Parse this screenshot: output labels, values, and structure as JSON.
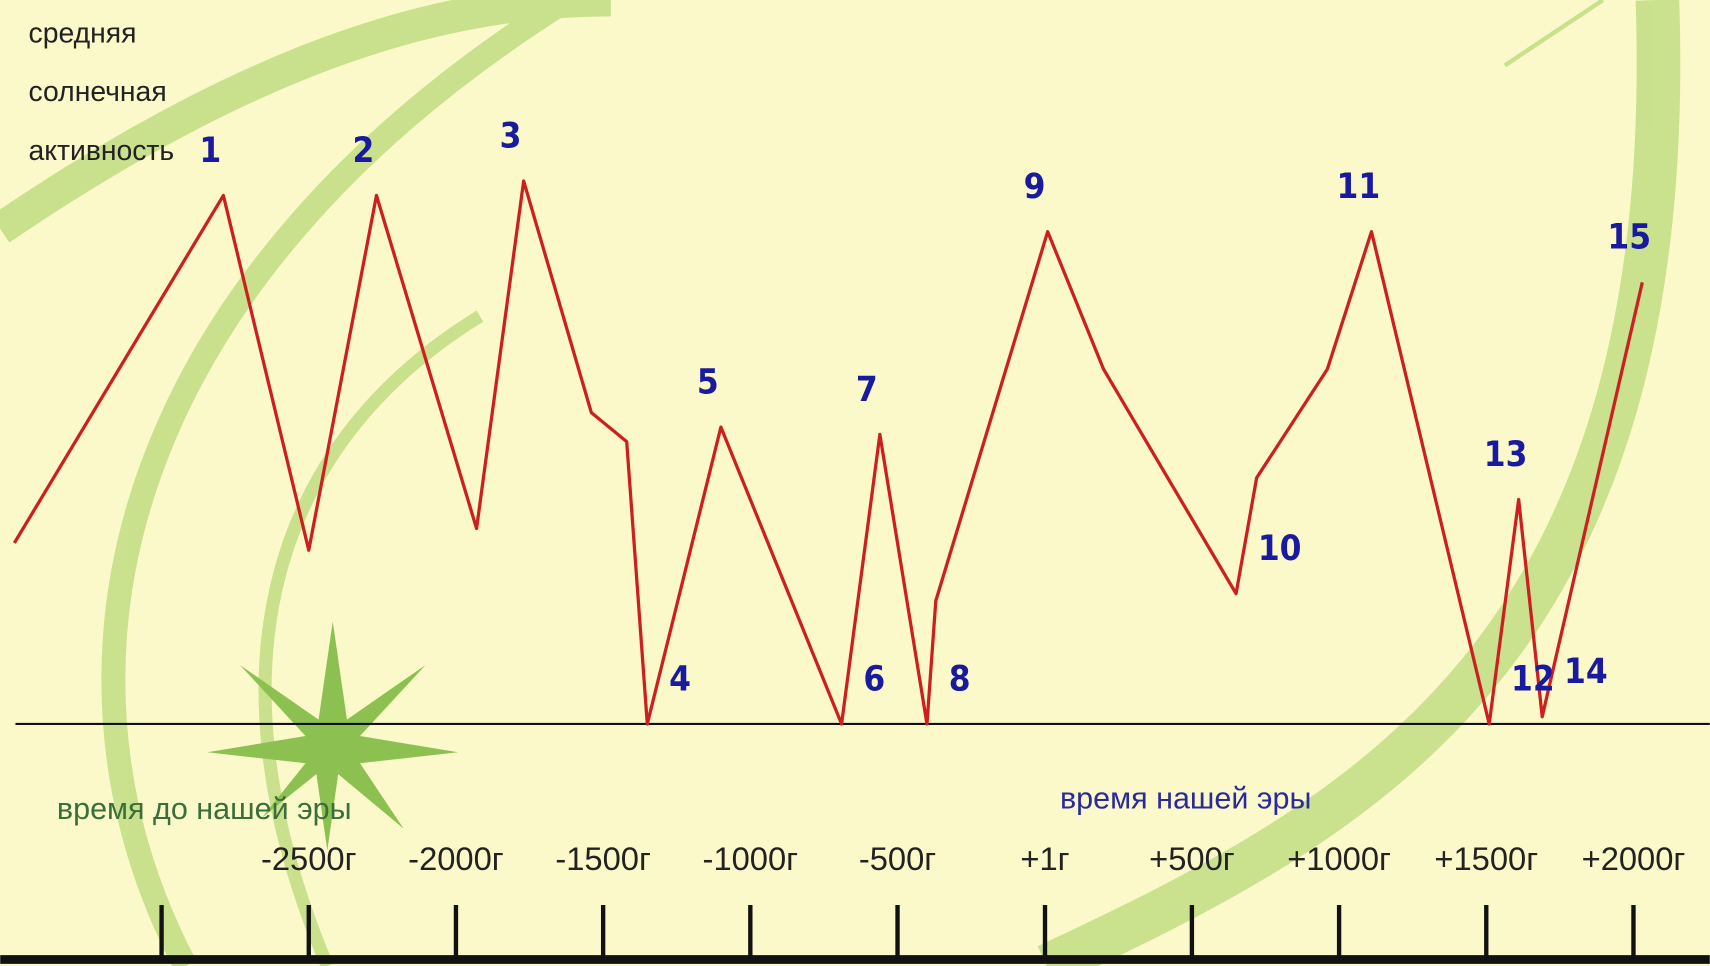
{
  "chart_data": {
    "type": "line",
    "ylabel": [
      "средняя",
      "солнечная",
      "активность"
    ],
    "annotations": [
      "время до нашей эры",
      "время нашей эры"
    ],
    "x": [
      -3500,
      -2790,
      -2500,
      -2270,
      -1930,
      -1770,
      -1540,
      -1420,
      -1350,
      -1100,
      -690,
      -560,
      -400,
      -370,
      10,
      200,
      650,
      720,
      960,
      1110,
      1510,
      1610,
      1690,
      2030
    ],
    "values": [
      25,
      73,
      24,
      73,
      27,
      75,
      43,
      39,
      0,
      41,
      0,
      40,
      0,
      17,
      68,
      49,
      18,
      34,
      49,
      68,
      0,
      31,
      1,
      61
    ],
    "point_labels": [
      null,
      "1",
      null,
      "2",
      null,
      "3",
      null,
      null,
      "4",
      "5",
      "6",
      "7",
      "8",
      null,
      "9",
      null,
      "10",
      null,
      null,
      "11",
      "12",
      "13",
      "14",
      "15"
    ],
    "color": "#cc2020",
    "xlim": [
      -3500,
      2250
    ],
    "ylim": [
      0,
      100
    ],
    "xticks": [
      {
        "value": -3000,
        "label": null
      },
      {
        "value": -2500,
        "label": "-2500г"
      },
      {
        "value": -2000,
        "label": "-2000г"
      },
      {
        "value": -1500,
        "label": "-1500г"
      },
      {
        "value": -1000,
        "label": "-1000г"
      },
      {
        "value": -500,
        "label": "-500г"
      },
      {
        "value": 1,
        "label": "+1г"
      },
      {
        "value": 500,
        "label": "+500г"
      },
      {
        "value": 1000,
        "label": "+1000г"
      },
      {
        "value": 1500,
        "label": "+1500г"
      },
      {
        "value": 2000,
        "label": "+2000г"
      }
    ]
  }
}
